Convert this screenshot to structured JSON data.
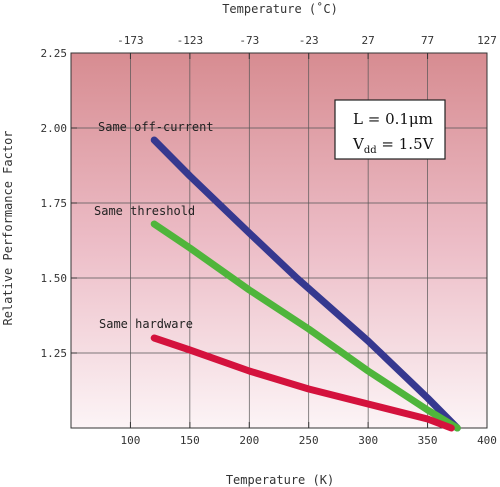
{
  "chart_data": {
    "type": "line",
    "xlabel": "Temperature (K)",
    "ylabel": "Relative Performance Factor",
    "top_xlabel": "Temperature (˚C)",
    "xlim": [
      50,
      400
    ],
    "ylim": [
      1.0,
      2.25
    ],
    "x_ticks": [
      "100",
      "150",
      "200",
      "250",
      "300",
      "350",
      "400"
    ],
    "x_tick_values": [
      100,
      150,
      200,
      250,
      300,
      350,
      400
    ],
    "y_ticks": [
      "1.25",
      "1.50",
      "1.75",
      "2.00",
      "2.25"
    ],
    "y_tick_values": [
      1.25,
      1.5,
      1.75,
      2.0,
      2.25
    ],
    "top_ticks": [
      "-173",
      "-123",
      "-73",
      "-23",
      "27",
      "77",
      "127"
    ],
    "grid": true,
    "annotation": {
      "line1_prefix": "L = 0.1",
      "line1_unit": "μm",
      "line2_prefix": "V",
      "line2_sub": "dd",
      "line2_suffix": " = 1.5V"
    },
    "series": [
      {
        "name": "Same off-current",
        "color": "#36388f",
        "x": [
          120,
          150,
          200,
          240,
          300,
          350,
          375
        ],
        "y": [
          1.96,
          1.84,
          1.65,
          1.5,
          1.29,
          1.1,
          1.0
        ]
      },
      {
        "name": "Same threshold",
        "color": "#4fb53b",
        "x": [
          120,
          150,
          200,
          250,
          300,
          350,
          375
        ],
        "y": [
          1.68,
          1.6,
          1.46,
          1.33,
          1.19,
          1.06,
          1.0
        ]
      },
      {
        "name": "Same hardware",
        "color": "#d4123d",
        "x": [
          120,
          150,
          200,
          250,
          300,
          350,
          370
        ],
        "y": [
          1.3,
          1.26,
          1.19,
          1.13,
          1.08,
          1.03,
          1.0
        ]
      }
    ]
  }
}
